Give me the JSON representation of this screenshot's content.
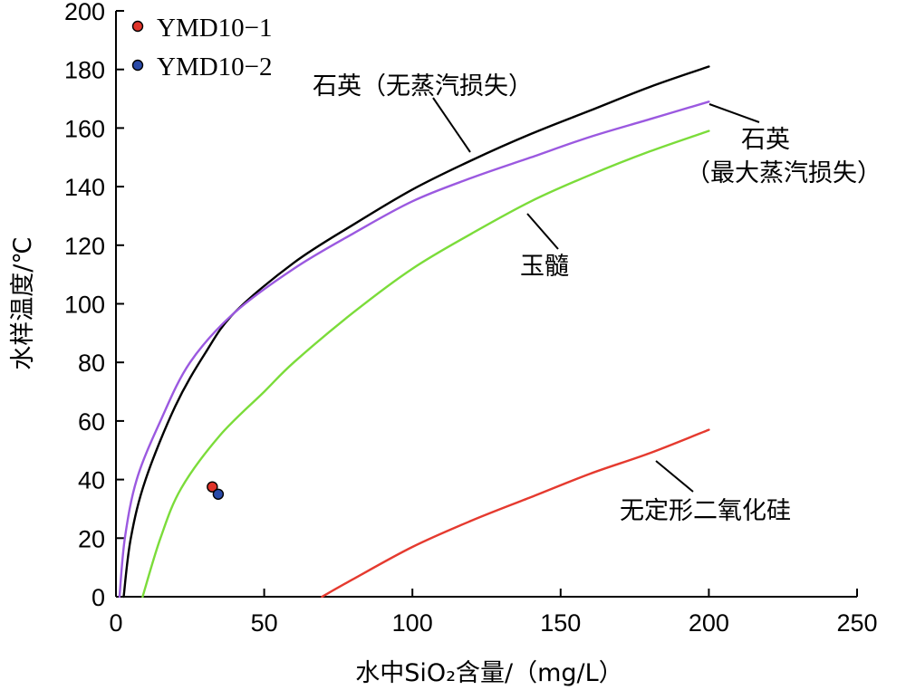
{
  "chart_data": {
    "type": "line",
    "xlabel": "水中SiO₂含量/（mg/L）",
    "ylabel": "水样温度/℃",
    "xlim": [
      0,
      250
    ],
    "ylim": [
      0,
      200
    ],
    "xticks": [
      0,
      50,
      100,
      150,
      200,
      250
    ],
    "yticks": [
      0,
      20,
      40,
      60,
      80,
      100,
      120,
      140,
      160,
      180,
      200
    ],
    "grid": false,
    "legend_position": "top-left",
    "legend": [
      {
        "label": "YMD10−1",
        "color": "#e0342a"
      },
      {
        "label": "YMD10−2",
        "color": "#2a4aa8"
      }
    ],
    "points": [
      {
        "name": "YMD10−1",
        "x": 32.5,
        "y": 37.5,
        "color": "#e0342a"
      },
      {
        "name": "YMD10−2",
        "x": 34.5,
        "y": 35,
        "color": "#2a4aa8"
      }
    ],
    "series": [
      {
        "label": "石英（无蒸汽损失）",
        "color": "#000000",
        "points": [
          [
            2.6,
            0
          ],
          [
            5,
            20
          ],
          [
            10,
            40
          ],
          [
            20,
            65
          ],
          [
            30,
            83
          ],
          [
            40,
            97
          ],
          [
            60,
            114
          ],
          [
            80,
            127
          ],
          [
            100,
            139
          ],
          [
            120,
            149
          ],
          [
            140,
            158
          ],
          [
            160,
            166
          ],
          [
            180,
            174
          ],
          [
            200,
            181
          ]
        ]
      },
      {
        "label": "石英（最大蒸汽损失）",
        "color": "#9b59e0",
        "points": [
          [
            1.2,
            0
          ],
          [
            3,
            20
          ],
          [
            7,
            40
          ],
          [
            15,
            60
          ],
          [
            25,
            80
          ],
          [
            40,
            97
          ],
          [
            60,
            112
          ],
          [
            80,
            124
          ],
          [
            100,
            135
          ],
          [
            120,
            143
          ],
          [
            140,
            150
          ],
          [
            160,
            157
          ],
          [
            180,
            163
          ],
          [
            200,
            169
          ]
        ]
      },
      {
        "label": "玉髓",
        "color": "#7bdc3a",
        "points": [
          [
            9,
            0
          ],
          [
            15,
            20
          ],
          [
            22,
            37
          ],
          [
            35,
            55
          ],
          [
            50,
            70
          ],
          [
            60,
            80
          ],
          [
            80,
            97
          ],
          [
            100,
            112
          ],
          [
            120,
            124
          ],
          [
            140,
            135
          ],
          [
            160,
            144
          ],
          [
            180,
            152
          ],
          [
            200,
            159
          ]
        ]
      },
      {
        "label": "无定形二氧化硅",
        "color": "#e53a2f",
        "points": [
          [
            69.5,
            0
          ],
          [
            80,
            6
          ],
          [
            100,
            17
          ],
          [
            120,
            26
          ],
          [
            140,
            34
          ],
          [
            160,
            42
          ],
          [
            180,
            49
          ],
          [
            200,
            57
          ]
        ]
      }
    ],
    "annotations": [
      {
        "text": "石英（无蒸汽损失）"
      },
      {
        "text": "石英"
      },
      {
        "text": "（最大蒸汽损失）"
      },
      {
        "text": "玉髓"
      },
      {
        "text": "无定形二氧化硅"
      }
    ]
  }
}
